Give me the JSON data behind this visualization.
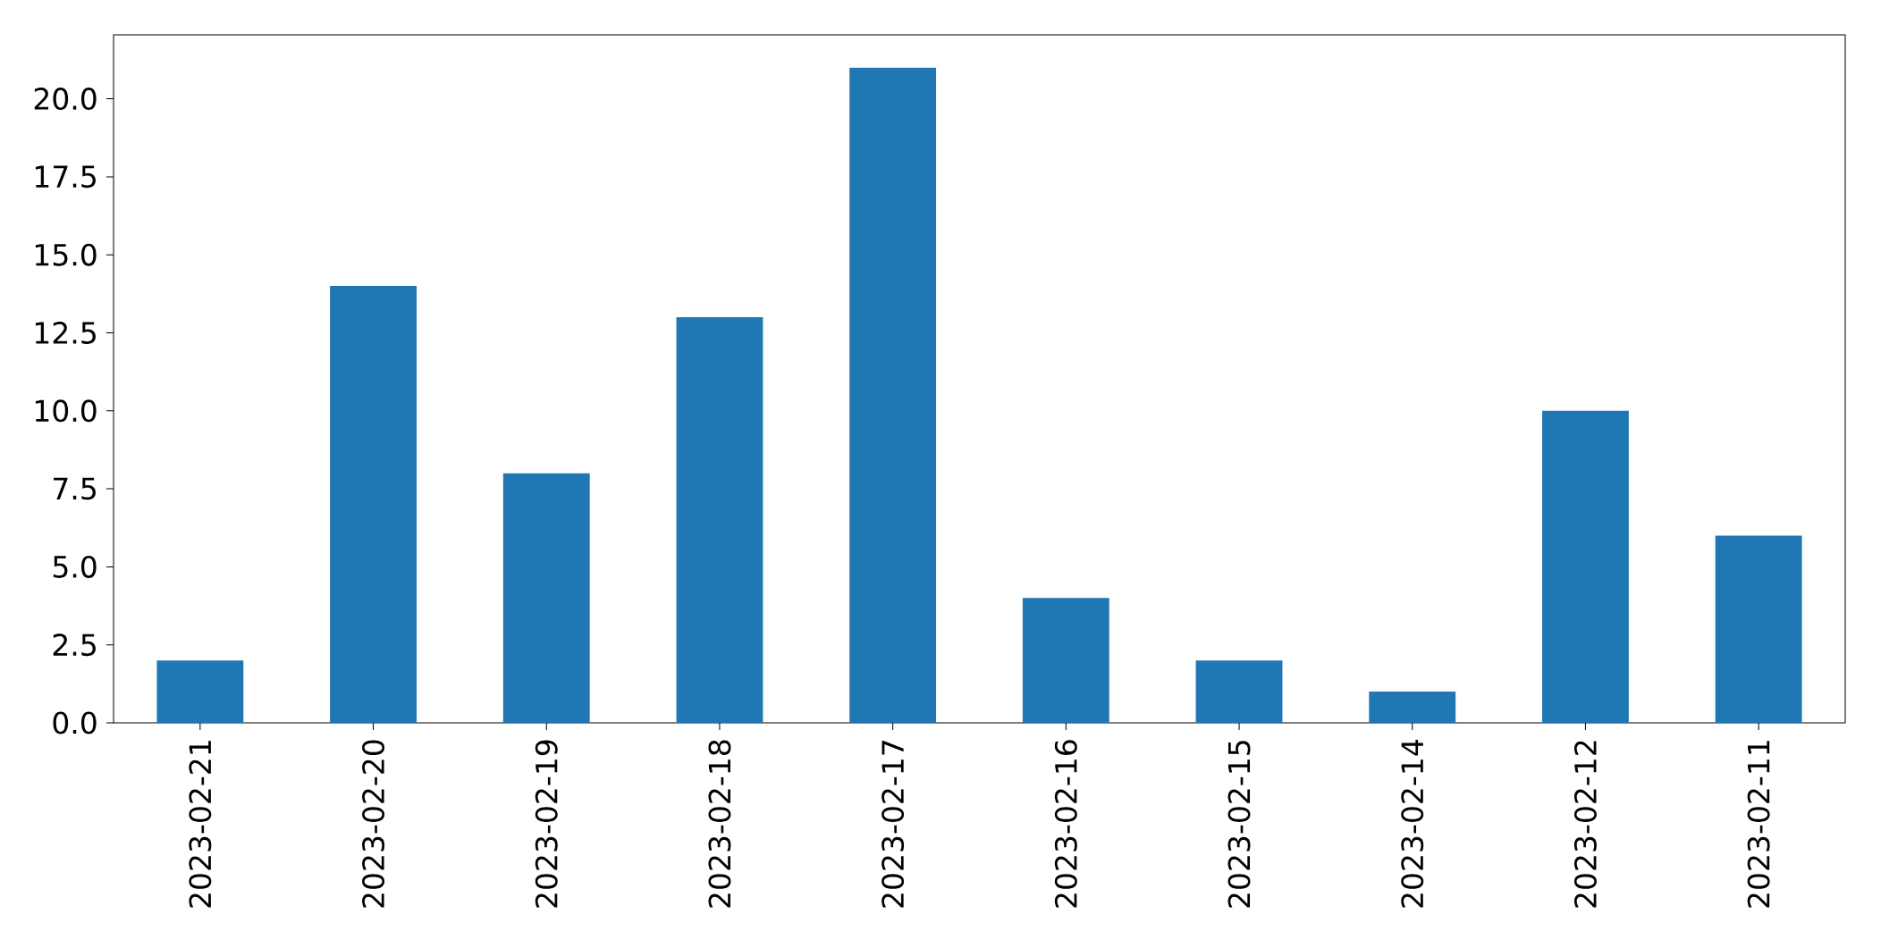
{
  "chart_data": {
    "type": "bar",
    "categories": [
      "2023-02-21",
      "2023-02-20",
      "2023-02-19",
      "2023-02-18",
      "2023-02-17",
      "2023-02-16",
      "2023-02-15",
      "2023-02-14",
      "2023-02-12",
      "2023-02-11"
    ],
    "values": [
      2,
      14,
      8,
      13,
      21,
      4,
      2,
      1,
      10,
      6
    ],
    "color": "#1f77b4",
    "ylim": [
      0,
      22.05
    ],
    "yticks": [
      {
        "value": 0,
        "label": "0.0"
      },
      {
        "value": 2.5,
        "label": "2.5"
      },
      {
        "value": 5,
        "label": "5.0"
      },
      {
        "value": 7.5,
        "label": "7.5"
      },
      {
        "value": 10,
        "label": "10.0"
      },
      {
        "value": 12.5,
        "label": "12.5"
      },
      {
        "value": 15,
        "label": "15.0"
      },
      {
        "value": 17.5,
        "label": "17.5"
      },
      {
        "value": 20,
        "label": "20.0"
      }
    ],
    "grid": false
  }
}
